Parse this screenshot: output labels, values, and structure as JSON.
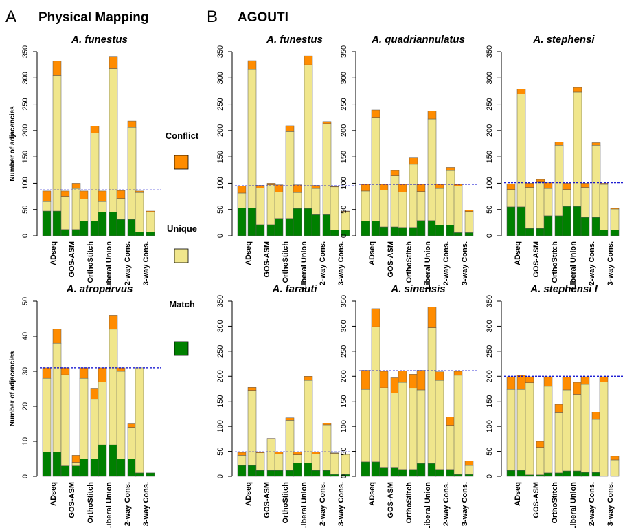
{
  "panel_letters": [
    "A",
    "B"
  ],
  "section_titles": [
    "Physical Mapping",
    "AGOUTI"
  ],
  "ylabel": "Number of adjacencies",
  "legend": {
    "items": [
      {
        "label": "Conflict",
        "color": "#FF8C00"
      },
      {
        "label": "Unique",
        "color": "#F0E68C"
      },
      {
        "label": "Match",
        "color": "#008000"
      }
    ]
  },
  "colors": {
    "match": "#008000",
    "unique": "#F0E68C",
    "conflict": "#FF8C00",
    "reference_line": "#0000CC"
  },
  "chart_data": [
    {
      "type": "bar",
      "stacked": true,
      "title": "A. funestus",
      "section": "Physical Mapping",
      "categories": [
        "ADseq",
        "GOS-ASM",
        "OrthoStitch",
        "Liberal Union",
        "2-way Cons.",
        "3-way Cons."
      ],
      "ylim": [
        0,
        350
      ],
      "yticks": [
        0,
        50,
        100,
        150,
        200,
        250,
        300,
        350
      ],
      "reference": 87,
      "bars": [
        [
          47,
          18,
          20
        ],
        [
          47,
          258,
          27
        ],
        [
          12,
          63,
          10
        ],
        [
          12,
          78,
          10
        ],
        [
          28,
          42,
          15
        ],
        [
          28,
          167,
          13
        ],
        [
          45,
          20,
          20
        ],
        [
          45,
          273,
          22
        ],
        [
          31,
          40,
          15
        ],
        [
          31,
          175,
          12
        ],
        [
          7,
          75,
          3
        ],
        [
          7,
          38,
          2
        ]
      ]
    },
    {
      "type": "bar",
      "stacked": true,
      "title": "A. atroparvus",
      "section": "Physical Mapping",
      "categories": [
        "ADseq",
        "GOS-ASM",
        "OrthoStitch",
        "Liberal Union",
        "2-way Cons.",
        "3-way Cons."
      ],
      "ylim": [
        0,
        50
      ],
      "yticks": [
        0,
        10,
        20,
        30,
        40,
        50
      ],
      "reference": 31,
      "bars": [
        [
          7,
          21,
          3
        ],
        [
          7,
          31,
          4
        ],
        [
          3,
          26,
          2
        ],
        [
          3,
          1,
          2
        ],
        [
          5,
          23,
          3
        ],
        [
          5,
          17,
          3
        ],
        [
          9,
          18,
          4
        ],
        [
          9,
          33,
          4
        ],
        [
          5,
          25,
          1
        ],
        [
          5,
          9,
          1
        ],
        [
          1,
          30,
          0
        ],
        [
          1,
          0,
          0
        ]
      ]
    },
    {
      "type": "bar",
      "stacked": true,
      "title": "A. funestus",
      "section": "AGOUTI",
      "categories": [
        "ADseq",
        "GOS-ASM",
        "OrthoStitch",
        "Liberal Union",
        "2-way Cons.",
        "3-way Cons."
      ],
      "ylim": [
        0,
        350
      ],
      "yticks": [
        0,
        50,
        100,
        150,
        200,
        250,
        300,
        350
      ],
      "reference": 95,
      "bars": [
        [
          53,
          28,
          14
        ],
        [
          53,
          263,
          17
        ],
        [
          21,
          70,
          5
        ],
        [
          21,
          76,
          3
        ],
        [
          33,
          50,
          14
        ],
        [
          33,
          165,
          11
        ],
        [
          52,
          30,
          15
        ],
        [
          52,
          273,
          17
        ],
        [
          40,
          50,
          6
        ],
        [
          40,
          173,
          4
        ],
        [
          11,
          82,
          1
        ],
        [
          11,
          35,
          1
        ]
      ]
    },
    {
      "type": "bar",
      "stacked": true,
      "title": "A. quadriannulatus",
      "section": "AGOUTI",
      "categories": [
        "ADseq",
        "GOS-ASM",
        "OrthoStitch",
        "Liberal Union",
        "2-way Cons.",
        "3-way Cons."
      ],
      "ylim": [
        0,
        350
      ],
      "yticks": [
        0,
        50,
        100,
        150,
        200,
        250,
        300,
        350
      ],
      "reference": 98,
      "bars": [
        [
          28,
          57,
          13
        ],
        [
          28,
          197,
          14
        ],
        [
          17,
          70,
          11
        ],
        [
          17,
          97,
          10
        ],
        [
          16,
          67,
          15
        ],
        [
          16,
          120,
          12
        ],
        [
          29,
          55,
          14
        ],
        [
          29,
          193,
          15
        ],
        [
          20,
          70,
          8
        ],
        [
          20,
          104,
          6
        ],
        [
          6,
          89,
          3
        ],
        [
          6,
          40,
          3
        ]
      ]
    },
    {
      "type": "bar",
      "stacked": true,
      "title": "A. stephensi",
      "section": "AGOUTI",
      "categories": [
        "ADseq",
        "GOS-ASM",
        "OrthoStitch",
        "Liberal Union",
        "2-way Cons.",
        "3-way Cons."
      ],
      "ylim": [
        0,
        350
      ],
      "yticks": [
        0,
        50,
        100,
        150,
        200,
        250,
        300,
        350
      ],
      "reference": 101,
      "bars": [
        [
          55,
          33,
          11
        ],
        [
          55,
          215,
          9
        ],
        [
          14,
          78,
          8
        ],
        [
          14,
          88,
          5
        ],
        [
          38,
          52,
          11
        ],
        [
          38,
          134,
          6
        ],
        [
          56,
          32,
          12
        ],
        [
          56,
          217,
          9
        ],
        [
          35,
          57,
          8
        ],
        [
          35,
          137,
          5
        ],
        [
          11,
          87,
          2
        ],
        [
          11,
          40,
          2
        ]
      ]
    },
    {
      "type": "bar",
      "stacked": true,
      "title": "A. farauti",
      "section": "AGOUTI",
      "categories": [
        "ADseq",
        "GOS-ASM",
        "OrthoStitch",
        "Liberal Union",
        "2-way Cons.",
        "3-way Cons."
      ],
      "ylim": [
        0,
        350
      ],
      "yticks": [
        0,
        50,
        100,
        150,
        200,
        250,
        300,
        350
      ],
      "reference": 49,
      "bars": [
        [
          22,
          20,
          6
        ],
        [
          22,
          150,
          6
        ],
        [
          12,
          35,
          2
        ],
        [
          12,
          63,
          1
        ],
        [
          12,
          33,
          4
        ],
        [
          12,
          100,
          5
        ],
        [
          27,
          16,
          6
        ],
        [
          27,
          165,
          8
        ],
        [
          12,
          33,
          4
        ],
        [
          12,
          91,
          3
        ],
        [
          4,
          42,
          1
        ],
        [
          4,
          40,
          1
        ]
      ]
    },
    {
      "type": "bar",
      "stacked": true,
      "title": "A. sinensis",
      "section": "AGOUTI",
      "categories": [
        "ADseq",
        "GOS-ASM",
        "OrthoStitch",
        "Liberal Union",
        "2-way Cons.",
        "3-way Cons."
      ],
      "ylim": [
        0,
        350
      ],
      "yticks": [
        0,
        50,
        100,
        150,
        200,
        250,
        300,
        350
      ],
      "reference": 211,
      "bars": [
        [
          29,
          145,
          38
        ],
        [
          29,
          270,
          36
        ],
        [
          17,
          160,
          33
        ],
        [
          17,
          150,
          30
        ],
        [
          14,
          174,
          23
        ],
        [
          14,
          162,
          28
        ],
        [
          26,
          147,
          39
        ],
        [
          26,
          271,
          41
        ],
        [
          14,
          178,
          17
        ],
        [
          14,
          88,
          17
        ],
        [
          4,
          198,
          8
        ],
        [
          4,
          18,
          9
        ]
      ]
    },
    {
      "type": "bar",
      "stacked": true,
      "title": "A. stephensi I",
      "section": "AGOUTI",
      "categories": [
        "ADseq",
        "GOS-ASM",
        "OrthoStitch",
        "Liberal Union",
        "2-way Cons.",
        "3-way Cons."
      ],
      "ylim": [
        0,
        350
      ],
      "yticks": [
        0,
        50,
        100,
        150,
        200,
        250,
        300,
        350
      ],
      "reference": 200,
      "bars": [
        [
          12,
          162,
          25
        ],
        [
          12,
          162,
          28
        ],
        [
          3,
          184,
          12
        ],
        [
          3,
          55,
          12
        ],
        [
          7,
          173,
          19
        ],
        [
          7,
          120,
          17
        ],
        [
          11,
          162,
          25
        ],
        [
          11,
          153,
          24
        ],
        [
          8,
          176,
          15
        ],
        [
          8,
          106,
          14
        ],
        [
          1,
          188,
          10
        ],
        [
          1,
          32,
          7
        ]
      ]
    }
  ]
}
